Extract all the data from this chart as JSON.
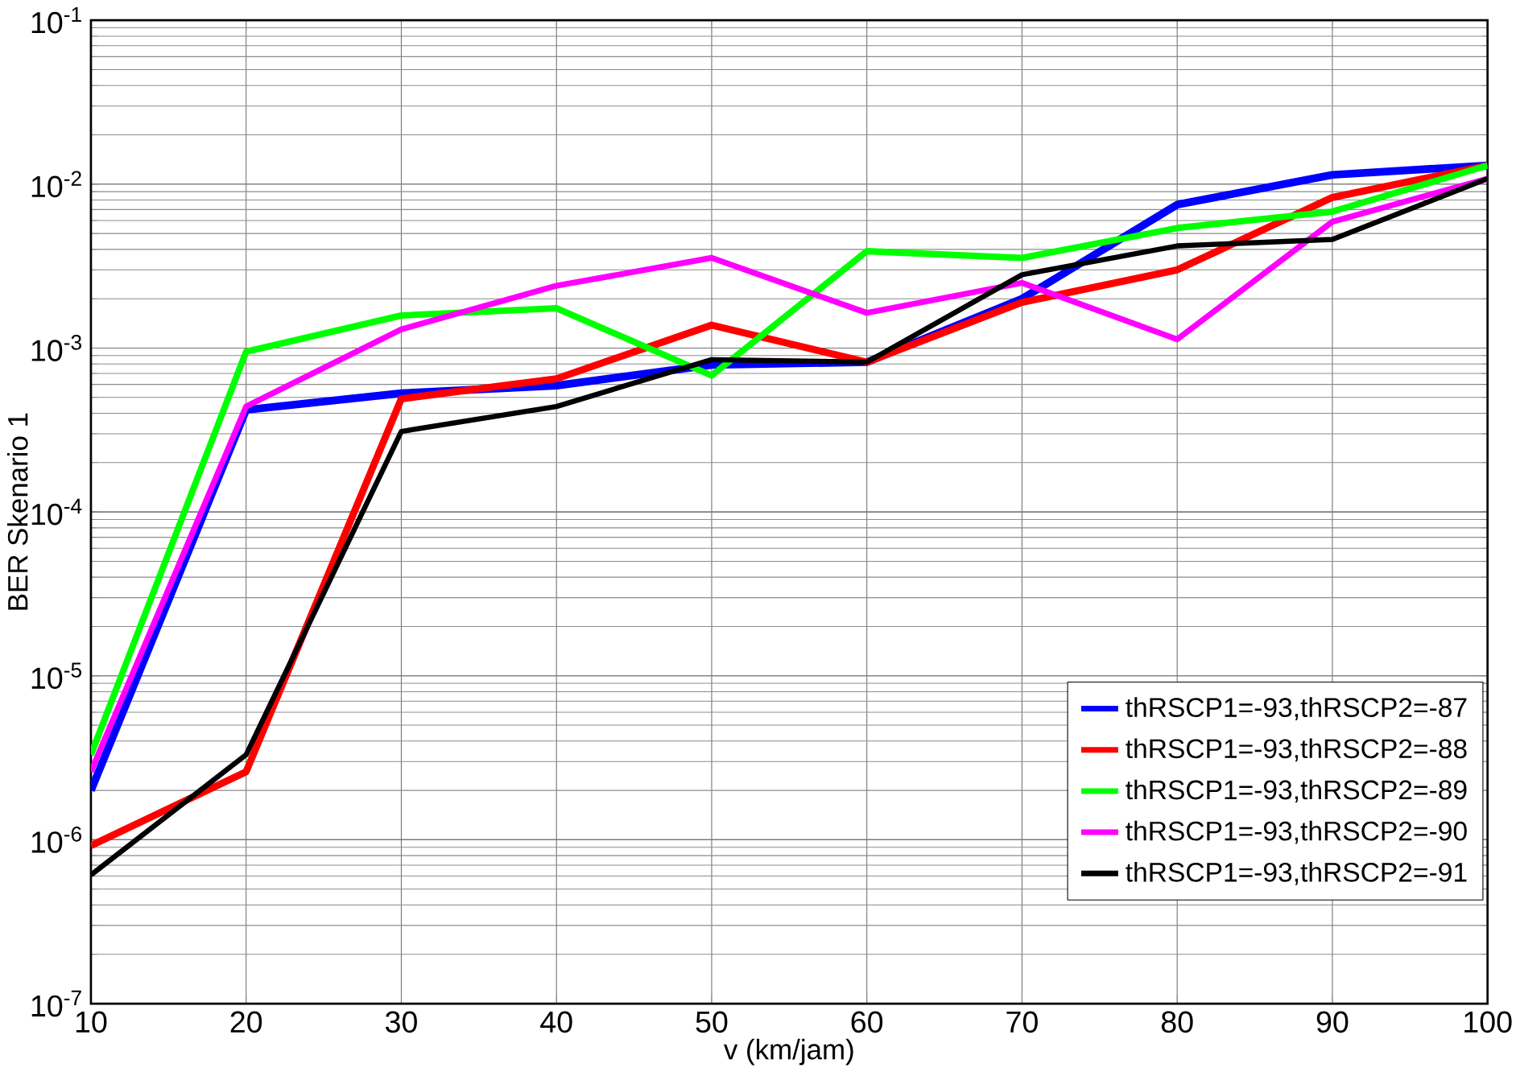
{
  "chart_data": {
    "type": "line",
    "xlabel": "v (km/jam)",
    "ylabel": "BER Skenario 1",
    "x": [
      10,
      20,
      30,
      40,
      50,
      60,
      70,
      80,
      90,
      100
    ],
    "xlim": [
      10,
      100
    ],
    "xticks": [
      10,
      20,
      30,
      40,
      50,
      60,
      70,
      80,
      90,
      100
    ],
    "ylim": [
      1e-07,
      0.1
    ],
    "yticks": [
      {
        "value": 1e-07,
        "label": "10$^{-7}$"
      },
      {
        "value": 1e-06,
        "label": "10$^{-6}$"
      },
      {
        "value": 1e-05,
        "label": "10$^{-5}$"
      },
      {
        "value": 0.0001,
        "label": "10$^{-4}$"
      },
      {
        "value": 0.001,
        "label": "10$^{-3}$"
      },
      {
        "value": 0.01,
        "label": "10$^{-2}$"
      },
      {
        "value": 0.1,
        "label": "10$^{-1}$"
      }
    ],
    "log": "y",
    "grid": true,
    "legend": "bottom right",
    "marker": "none",
    "line_style": "solid",
    "series": [
      {
        "name": "thRSCP1=-93,thRSCP2=-87",
        "color": "#0000ff",
        "values": [
          2e-06,
          0.00042,
          0.00053,
          0.00059,
          0.00079,
          0.00082,
          0.002,
          0.0075,
          0.0114,
          0.013
        ]
      },
      {
        "name": "thRSCP1=-93,thRSCP2=-88",
        "color": "#ff0000",
        "values": [
          9.2e-07,
          2.6e-06,
          0.00049,
          0.00065,
          0.00138,
          0.00082,
          0.0019,
          0.003,
          0.0083,
          0.013
        ]
      },
      {
        "name": "thRSCP1=-93,thRSCP2=-89",
        "color": "#00ff00",
        "values": [
          3.3e-06,
          0.00095,
          0.00158,
          0.00175,
          0.00068,
          0.0039,
          0.00355,
          0.0054,
          0.0068,
          0.013
        ]
      },
      {
        "name": "thRSCP1=-93,thRSCP2=-90",
        "color": "#ff00ff",
        "values": [
          2.6e-06,
          0.00044,
          0.0013,
          0.0024,
          0.00355,
          0.00164,
          0.0025,
          0.00113,
          0.0059,
          0.0108
        ]
      },
      {
        "name": "thRSCP1=-93,thRSCP2=-91",
        "color": "#000000",
        "values": [
          6.1e-07,
          3.3e-06,
          0.00031,
          0.00044,
          0.00085,
          0.00082,
          0.0028,
          0.0042,
          0.0046,
          0.0108
        ]
      }
    ]
  }
}
